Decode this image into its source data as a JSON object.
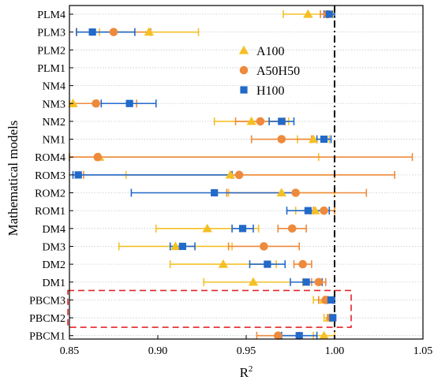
{
  "chart_data": {
    "type": "scatter",
    "title": "",
    "xlabel": "R",
    "xlabel_superscript": "2",
    "ylabel": "Mathematical models",
    "xlim": [
      0.85,
      1.05
    ],
    "xticks": [
      "0.85",
      "0.90",
      "0.95",
      "1.00",
      "1.05"
    ],
    "xtick_values": [
      0.85,
      0.9,
      0.95,
      1.0,
      1.05
    ],
    "reference_line_x": 1.0,
    "categories": [
      "PLM4",
      "PLM3",
      "PLM2",
      "PLM1",
      "NM4",
      "NM3",
      "NM2",
      "NM1",
      "ROM4",
      "ROM3",
      "ROM2",
      "ROM1",
      "DM4",
      "DM3",
      "DM2",
      "DM1",
      "PBCM3",
      "PBCM2",
      "PBCM1"
    ],
    "legend_position": "top-right",
    "highlight_groups": [
      [
        "PBCM3",
        "PBCM2"
      ]
    ],
    "series": [
      {
        "name": "A100",
        "marker": "triangle",
        "color": "#F5C026",
        "points": [
          {
            "category": "PLM4",
            "value": 0.985,
            "low": 0.971,
            "high": 0.999
          },
          {
            "category": "PLM3",
            "value": 0.895,
            "low": 0.867,
            "high": 0.923
          },
          {
            "category": "NM3",
            "value": 0.852,
            "low": 0.85,
            "high": 0.866
          },
          {
            "category": "NM2",
            "value": 0.953,
            "low": 0.932,
            "high": 0.974
          },
          {
            "category": "NM1",
            "value": 0.988,
            "low": 0.979,
            "high": 0.997
          },
          {
            "category": "ROM4",
            "value": 0.867,
            "low": 0.85,
            "high": 0.991
          },
          {
            "category": "ROM3",
            "value": 0.941,
            "low": 0.882,
            "high": 1.0
          },
          {
            "category": "ROM2",
            "value": 0.97,
            "low": 0.94,
            "high": 1.0
          },
          {
            "category": "ROM1",
            "value": 0.989,
            "low": 0.978,
            "high": 1.0
          },
          {
            "category": "DM4",
            "value": 0.928,
            "low": 0.899,
            "high": 0.957
          },
          {
            "category": "DM3",
            "value": 0.91,
            "low": 0.878,
            "high": 0.942
          },
          {
            "category": "DM2",
            "value": 0.937,
            "low": 0.907,
            "high": 0.967
          },
          {
            "category": "DM1",
            "value": 0.954,
            "low": 0.926,
            "high": 0.982
          },
          {
            "category": "PBCM3",
            "value": 0.994,
            "low": 0.988,
            "high": 1.0
          },
          {
            "category": "PBCM2",
            "value": 0.997,
            "low": 0.994,
            "high": 1.0
          },
          {
            "category": "PBCM1",
            "value": 0.994,
            "low": 0.988,
            "high": 1.0
          }
        ]
      },
      {
        "name": "A50H50",
        "marker": "circle",
        "color": "#EE8A3C",
        "points": [
          {
            "category": "PLM4",
            "value": 0.996,
            "low": 0.992,
            "high": 1.0
          },
          {
            "category": "PLM3",
            "value": 0.875,
            "low": 0.854,
            "high": 0.896
          },
          {
            "category": "NM3",
            "value": 0.865,
            "low": 0.852,
            "high": 0.888
          },
          {
            "category": "NM2",
            "value": 0.958,
            "low": 0.944,
            "high": 0.972
          },
          {
            "category": "NM1",
            "value": 0.97,
            "low": 0.953,
            "high": 0.987
          },
          {
            "category": "ROM4",
            "value": 0.866,
            "low": 0.85,
            "high": 1.044
          },
          {
            "category": "ROM3",
            "value": 0.946,
            "low": 0.858,
            "high": 1.034
          },
          {
            "category": "ROM2",
            "value": 0.978,
            "low": 0.939,
            "high": 1.018
          },
          {
            "category": "ROM1",
            "value": 0.994,
            "low": 0.988,
            "high": 1.0
          },
          {
            "category": "DM4",
            "value": 0.976,
            "low": 0.968,
            "high": 0.984
          },
          {
            "category": "DM3",
            "value": 0.96,
            "low": 0.94,
            "high": 0.98
          },
          {
            "category": "DM2",
            "value": 0.982,
            "low": 0.977,
            "high": 0.987
          },
          {
            "category": "DM1",
            "value": 0.991,
            "low": 0.987,
            "high": 0.995
          },
          {
            "category": "PBCM3",
            "value": 0.995,
            "low": 0.991,
            "high": 0.999
          },
          {
            "category": "PBCM2",
            "value": 0.998,
            "low": 0.996,
            "high": 1.0
          },
          {
            "category": "PBCM1",
            "value": 0.968,
            "low": 0.956,
            "high": 0.98
          }
        ]
      },
      {
        "name": "H100",
        "marker": "square",
        "color": "#2269C9",
        "points": [
          {
            "category": "PLM4",
            "value": 0.997,
            "low": 0.994,
            "high": 1.0
          },
          {
            "category": "PLM3",
            "value": 0.863,
            "low": 0.854,
            "high": 0.887
          },
          {
            "category": "NM3",
            "value": 0.884,
            "low": 0.868,
            "high": 0.899
          },
          {
            "category": "NM2",
            "value": 0.97,
            "low": 0.963,
            "high": 0.977
          },
          {
            "category": "NM1",
            "value": 0.994,
            "low": 0.99,
            "high": 0.998
          },
          {
            "category": "ROM3",
            "value": 0.855,
            "low": 0.852,
            "high": 0.942
          },
          {
            "category": "ROM2",
            "value": 0.932,
            "low": 0.885,
            "high": 0.978
          },
          {
            "category": "ROM1",
            "value": 0.985,
            "low": 0.973,
            "high": 0.997
          },
          {
            "category": "DM4",
            "value": 0.948,
            "low": 0.942,
            "high": 0.954
          },
          {
            "category": "DM3",
            "value": 0.914,
            "low": 0.907,
            "high": 0.921
          },
          {
            "category": "DM2",
            "value": 0.962,
            "low": 0.952,
            "high": 0.972
          },
          {
            "category": "DM1",
            "value": 0.984,
            "low": 0.975,
            "high": 0.993
          },
          {
            "category": "PBCM3",
            "value": 0.998,
            "low": 0.996,
            "high": 1.0
          },
          {
            "category": "PBCM2",
            "value": 0.999,
            "low": 0.998,
            "high": 1.0
          },
          {
            "category": "PBCM1",
            "value": 0.98,
            "low": 0.97,
            "high": 0.99
          }
        ]
      }
    ]
  }
}
